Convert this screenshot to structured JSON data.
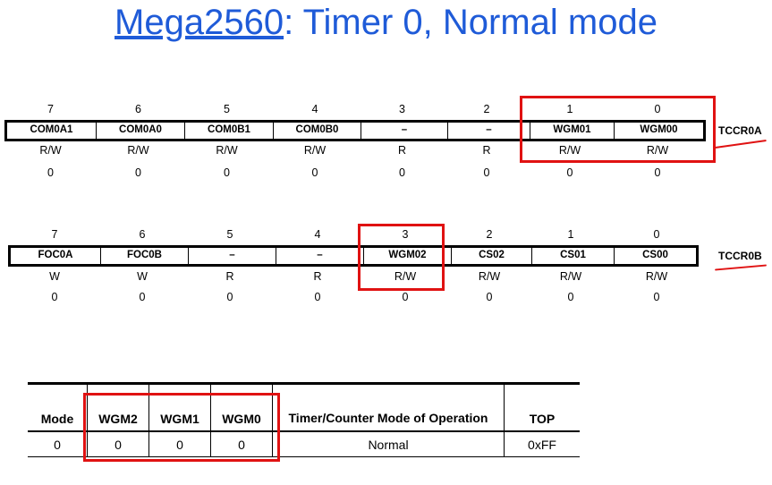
{
  "title": {
    "link": "Mega2560",
    "rest": ": Timer 0, Normal mode"
  },
  "bit_numbers": [
    "7",
    "6",
    "5",
    "4",
    "3",
    "2",
    "1",
    "0"
  ],
  "tccr0a": {
    "name": "TCCR0A",
    "bits": [
      "COM0A1",
      "COM0A0",
      "COM0B1",
      "COM0B0",
      "–",
      "–",
      "WGM01",
      "WGM00"
    ],
    "access": [
      "R/W",
      "R/W",
      "R/W",
      "R/W",
      "R",
      "R",
      "R/W",
      "R/W"
    ],
    "reset": [
      "0",
      "0",
      "0",
      "0",
      "0",
      "0",
      "0",
      "0"
    ]
  },
  "tccr0b": {
    "name": "TCCR0B",
    "bits": [
      "FOC0A",
      "FOC0B",
      "–",
      "–",
      "WGM02",
      "CS02",
      "CS01",
      "CS00"
    ],
    "access": [
      "W",
      "W",
      "R",
      "R",
      "R/W",
      "R/W",
      "R/W",
      "R/W"
    ],
    "reset": [
      "0",
      "0",
      "0",
      "0",
      "0",
      "0",
      "0",
      "0"
    ]
  },
  "mode_table": {
    "headers": [
      "Mode",
      "WGM2",
      "WGM1",
      "WGM0",
      "Timer/Counter Mode of Operation",
      "TOP"
    ],
    "row": [
      "0",
      "0",
      "0",
      "0",
      "Normal",
      "0xFF"
    ]
  },
  "colors": {
    "title": "#1f5bd8",
    "highlight": "#e01212"
  }
}
